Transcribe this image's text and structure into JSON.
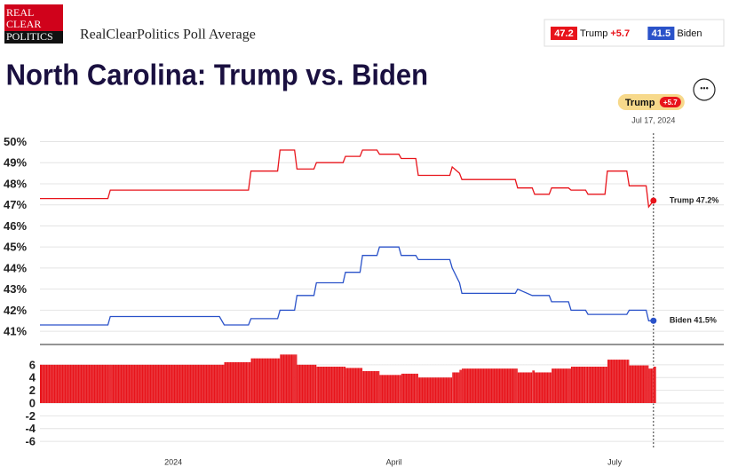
{
  "header": {
    "logo": [
      "REAL",
      "CLEAR",
      "POLITICS"
    ],
    "source": "RealClearPolitics Poll Average",
    "menu": "•••"
  },
  "chart_data": [
    {
      "type": "line",
      "title": "North Carolina: Trump vs. Biden",
      "x": [
        "2023-11-07",
        "2023-12-05",
        "2023-12-06",
        "2024-01-20",
        "2024-01-22",
        "2024-02-01",
        "2024-02-02",
        "2024-02-13",
        "2024-02-14",
        "2024-02-20",
        "2024-02-21",
        "2024-02-28",
        "2024-02-29",
        "2024-03-11",
        "2024-03-12",
        "2024-03-18",
        "2024-03-19",
        "2024-03-25",
        "2024-03-26",
        "2024-04-03",
        "2024-04-04",
        "2024-04-10",
        "2024-04-11",
        "2024-04-24",
        "2024-04-25",
        "2024-04-28",
        "2024-04-29",
        "2024-05-21",
        "2024-05-22",
        "2024-05-28",
        "2024-05-29",
        "2024-06-04",
        "2024-06-05",
        "2024-06-12",
        "2024-06-13",
        "2024-06-19",
        "2024-06-20",
        "2024-06-27",
        "2024-06-28",
        "2024-07-06",
        "2024-07-07",
        "2024-07-14",
        "2024-07-15",
        "2024-07-17"
      ],
      "series": [
        {
          "name": "Trump",
          "color": "#e8141b",
          "last_label": "47.2",
          "spread_label": "+5.7",
          "end_label": "Trump 47.2%",
          "values": [
            47.3,
            47.3,
            47.7,
            47.7,
            47.7,
            47.7,
            48.6,
            48.6,
            49.6,
            49.6,
            48.7,
            48.7,
            49.0,
            49.0,
            49.3,
            49.3,
            49.6,
            49.6,
            49.4,
            49.4,
            49.2,
            49.2,
            48.4,
            48.4,
            48.8,
            48.5,
            48.2,
            48.2,
            47.8,
            47.8,
            47.5,
            47.5,
            47.8,
            47.8,
            47.7,
            47.7,
            47.5,
            47.5,
            48.6,
            48.6,
            47.9,
            47.9,
            46.9,
            47.2
          ]
        },
        {
          "name": "Biden",
          "color": "#2a52c9",
          "last_label": "41.5",
          "end_label": "Biden 41.5%",
          "values": [
            41.3,
            41.3,
            41.7,
            41.7,
            41.3,
            41.3,
            41.6,
            41.6,
            42.0,
            42.0,
            42.7,
            42.7,
            43.3,
            43.3,
            43.8,
            43.8,
            44.6,
            44.6,
            45.0,
            45.0,
            44.6,
            44.6,
            44.4,
            44.4,
            44.0,
            43.3,
            42.8,
            42.8,
            43.0,
            42.7,
            42.7,
            42.7,
            42.4,
            42.4,
            42.0,
            42.0,
            41.8,
            41.8,
            41.8,
            41.8,
            42.0,
            42.0,
            41.5,
            41.5
          ]
        }
      ],
      "cursor_label": "Jul 17, 2024",
      "xlim": [
        "2023-11-07",
        "2024-08-15"
      ],
      "ylim": [
        40.5,
        50.4
      ],
      "yticks": [
        {
          "value": 41,
          "label": "41%"
        },
        {
          "value": 42,
          "label": "42%"
        },
        {
          "value": 43,
          "label": "43%"
        },
        {
          "value": 44,
          "label": "44%"
        },
        {
          "value": 45,
          "label": "45%"
        },
        {
          "value": 46,
          "label": "46%"
        },
        {
          "value": 47,
          "label": "47%"
        },
        {
          "value": 48,
          "label": "48%"
        },
        {
          "value": 49,
          "label": "49%"
        },
        {
          "value": 50,
          "label": "50%"
        }
      ],
      "grid": true
    },
    {
      "type": "bar",
      "color": "#e8141b",
      "x": [
        "2023-11-07",
        "2023-12-05",
        "2023-12-06",
        "2024-01-20",
        "2024-01-22",
        "2024-02-01",
        "2024-02-02",
        "2024-02-13",
        "2024-02-14",
        "2024-02-20",
        "2024-02-21",
        "2024-02-28",
        "2024-02-29",
        "2024-03-11",
        "2024-03-12",
        "2024-03-18",
        "2024-03-19",
        "2024-03-25",
        "2024-03-26",
        "2024-04-03",
        "2024-04-04",
        "2024-04-10",
        "2024-04-11",
        "2024-04-24",
        "2024-04-25",
        "2024-04-28",
        "2024-04-29",
        "2024-05-21",
        "2024-05-22",
        "2024-05-28",
        "2024-05-29",
        "2024-06-04",
        "2024-06-05",
        "2024-06-12",
        "2024-06-13",
        "2024-06-19",
        "2024-06-20",
        "2024-06-27",
        "2024-06-28",
        "2024-07-06",
        "2024-07-07",
        "2024-07-14",
        "2024-07-15",
        "2024-07-17"
      ],
      "values": [
        6.0,
        6.0,
        6.0,
        6.0,
        6.4,
        6.4,
        7.0,
        7.0,
        7.6,
        7.6,
        6.0,
        6.0,
        5.7,
        5.7,
        5.5,
        5.5,
        5.0,
        5.0,
        4.4,
        4.4,
        4.6,
        4.6,
        4.0,
        4.0,
        4.8,
        5.2,
        5.4,
        5.4,
        4.8,
        5.1,
        4.8,
        4.8,
        5.4,
        5.4,
        5.7,
        5.7,
        5.7,
        5.7,
        6.8,
        6.8,
        5.9,
        5.9,
        5.4,
        5.7
      ],
      "xlim": [
        "2023-11-07",
        "2024-08-15"
      ],
      "ylim": [
        -6.4,
        8.2
      ],
      "yticks": [
        6,
        4,
        2,
        0,
        -2,
        -4,
        -6
      ],
      "xticks": [
        {
          "value": "2024-01-01",
          "label": "2024"
        },
        {
          "value": "2024-04-01",
          "label": "April"
        },
        {
          "value": "2024-07-01",
          "label": "July"
        }
      ],
      "grid": true
    }
  ]
}
